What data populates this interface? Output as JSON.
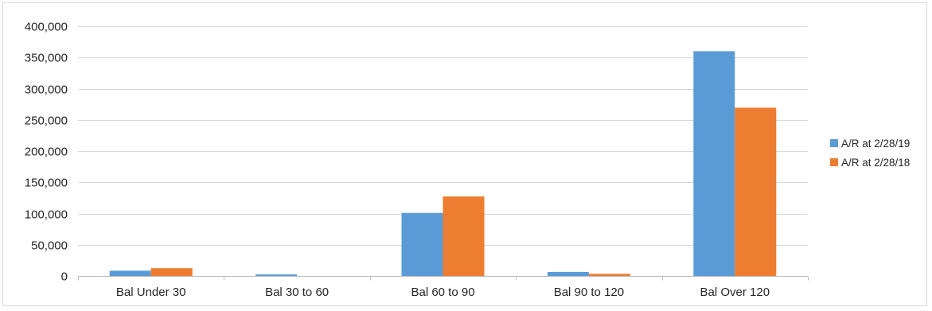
{
  "chart_data": {
    "type": "bar",
    "title": "",
    "xlabel": "",
    "ylabel": "",
    "categories": [
      "Bal Under 30",
      "Bal 30 to 60",
      "Bal 60 to 90",
      "Bal 90 to 120",
      "Bal Over 120"
    ],
    "series": [
      {
        "name": "A/R at 2/28/19",
        "color": "#5b9bd5",
        "values": [
          8500,
          2500,
          101000,
          6500,
          360000
        ]
      },
      {
        "name": "A/R at 2/28/18",
        "color": "#ed7d31",
        "values": [
          12500,
          0,
          127500,
          3500,
          269500
        ]
      }
    ],
    "ylim": [
      0,
      400000
    ],
    "yticks": [
      0,
      50000,
      100000,
      150000,
      200000,
      250000,
      300000,
      350000,
      400000
    ],
    "ytick_labels": [
      "0",
      "50,000",
      "100,000",
      "150,000",
      "200,000",
      "250,000",
      "300,000",
      "350,000",
      "400,000"
    ],
    "grid": true,
    "legend_position": "right"
  }
}
